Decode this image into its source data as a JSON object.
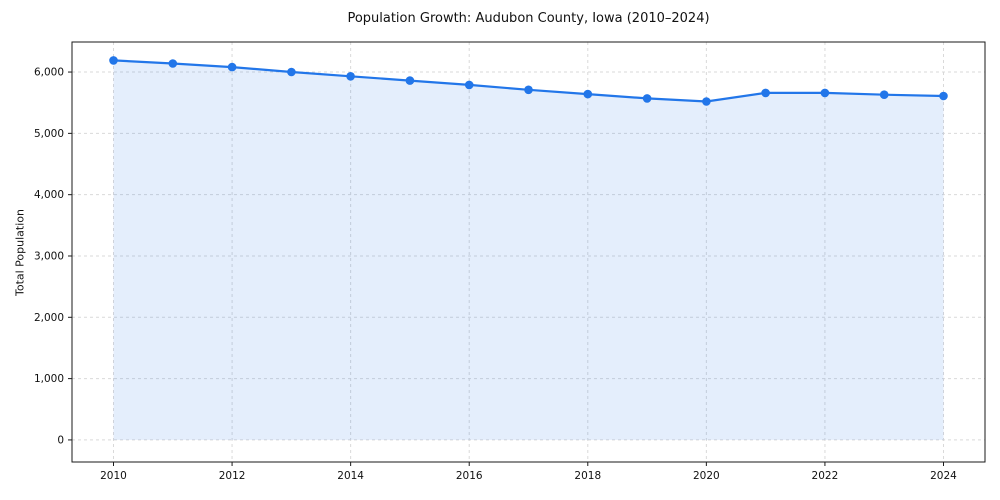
{
  "chart_data": {
    "type": "area",
    "title": "Population Growth: Audubon County, Iowa (2010–2024)",
    "xlabel": "",
    "ylabel": "Total Population",
    "x": [
      2010,
      2011,
      2012,
      2013,
      2014,
      2015,
      2016,
      2017,
      2018,
      2019,
      2020,
      2021,
      2022,
      2023,
      2024
    ],
    "series": [
      {
        "name": "Total Population",
        "values": [
          6190,
          6140,
          6080,
          6000,
          5930,
          5860,
          5790,
          5710,
          5640,
          5570,
          5520,
          5660,
          5660,
          5630,
          5610
        ]
      }
    ],
    "xlim": [
      2009.3,
      2024.7
    ],
    "ylim": [
      -360,
      6490
    ],
    "xticks": [
      {
        "value": 2010,
        "label": "2010"
      },
      {
        "value": 2012,
        "label": "2012"
      },
      {
        "value": 2014,
        "label": "2014"
      },
      {
        "value": 2016,
        "label": "2016"
      },
      {
        "value": 2018,
        "label": "2018"
      },
      {
        "value": 2020,
        "label": "2020"
      },
      {
        "value": 2022,
        "label": "2022"
      },
      {
        "value": 2024,
        "label": "2024"
      }
    ],
    "yticks": [
      {
        "value": 0,
        "label": "0"
      },
      {
        "value": 1000,
        "label": "1,000"
      },
      {
        "value": 2000,
        "label": "2,000"
      },
      {
        "value": 3000,
        "label": "3,000"
      },
      {
        "value": 4000,
        "label": "4,000"
      },
      {
        "value": 5000,
        "label": "5,000"
      },
      {
        "value": 6000,
        "label": "6,000"
      }
    ],
    "grid": true,
    "legend": false,
    "baseline": 0,
    "line_color": "#2276e9",
    "fill_color": "rgba(34,118,233,0.12)",
    "grid_color": "#d9d9d9",
    "spine_color": "#1a1a1a"
  }
}
